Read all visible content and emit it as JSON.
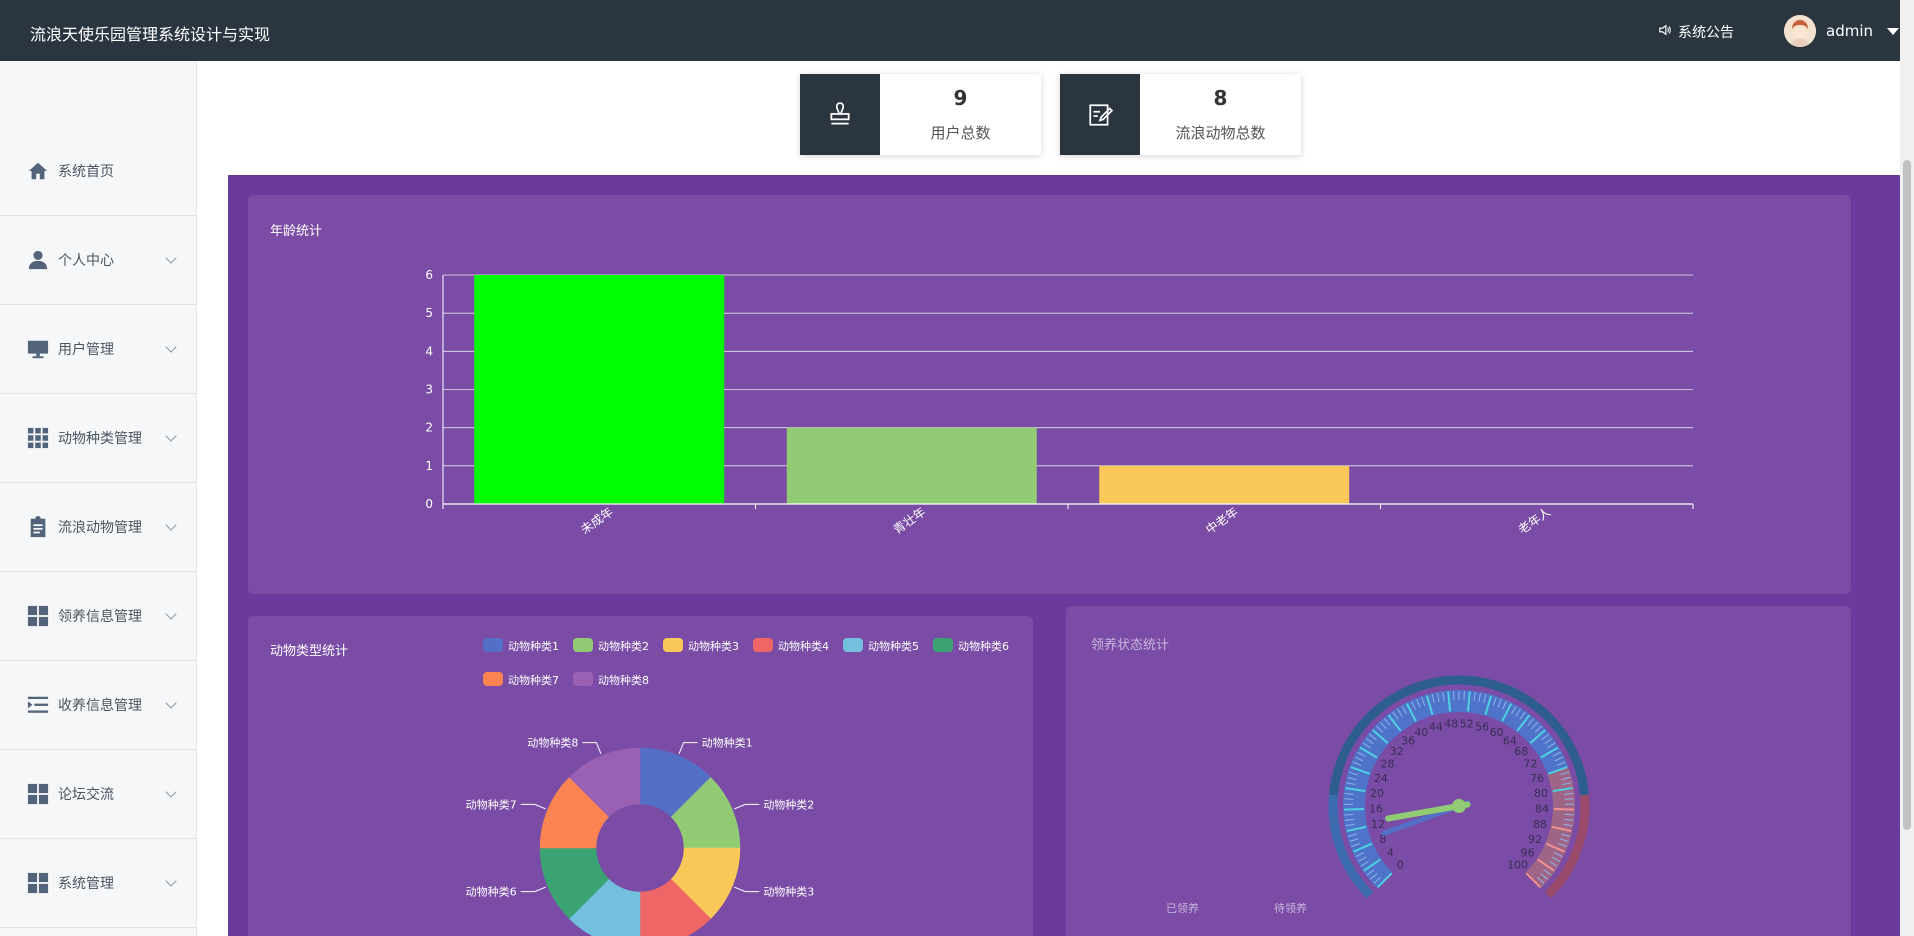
{
  "header": {
    "title": "流浪天使乐园管理系统设计与实现",
    "notice_label": "系统公告",
    "username": "admin"
  },
  "sidebar": {
    "items": [
      {
        "label": "系统首页",
        "icon": "home-icon",
        "has_submenu": false
      },
      {
        "label": "个人中心",
        "icon": "person-icon",
        "has_submenu": true
      },
      {
        "label": "用户管理",
        "icon": "monitor-icon",
        "has_submenu": true
      },
      {
        "label": "动物种类管理",
        "icon": "grid-icon",
        "has_submenu": true
      },
      {
        "label": "流浪动物管理",
        "icon": "clipboard-icon",
        "has_submenu": true
      },
      {
        "label": "领养信息管理",
        "icon": "tiles-icon",
        "has_submenu": true
      },
      {
        "label": "收养信息管理",
        "icon": "indent-icon",
        "has_submenu": true
      },
      {
        "label": "论坛交流",
        "icon": "tiles-icon",
        "has_submenu": true
      },
      {
        "label": "系统管理",
        "icon": "tiles-icon",
        "has_submenu": true
      }
    ]
  },
  "stats": [
    {
      "value": "9",
      "label": "用户总数",
      "icon": "stamp-icon"
    },
    {
      "value": "8",
      "label": "流浪动物总数",
      "icon": "edit-note-icon"
    }
  ],
  "panels": {
    "age_title": "年龄统计",
    "type_title": "动物类型统计",
    "adopt_title": "领养状态统计"
  },
  "chart_data": [
    {
      "type": "bar",
      "title": "年龄统计",
      "categories": [
        "未成年",
        "青壮年",
        "中老年",
        "老年人"
      ],
      "values": [
        6,
        2,
        1,
        0
      ],
      "colors": [
        "#00ff00",
        "#91cc75",
        "#fac858",
        "#ee6666"
      ],
      "ylim": [
        0,
        6
      ],
      "yticks": [
        0,
        1,
        2,
        3,
        4,
        5,
        6
      ],
      "grid": true
    },
    {
      "type": "pie",
      "title": "动物类型统计",
      "categories": [
        "动物种类1",
        "动物种类2",
        "动物种类3",
        "动物种类4",
        "动物种类5",
        "动物种类6",
        "动物种类7",
        "动物种类8"
      ],
      "values": [
        1,
        1,
        1,
        1,
        1,
        1,
        1,
        1
      ],
      "colors": [
        "#5470c6",
        "#91cc75",
        "#fac858",
        "#ee6666",
        "#73c0de",
        "#3ba272",
        "#fc8452",
        "#9a60b4"
      ],
      "legend_placement": "top"
    },
    {
      "type": "gauge",
      "title": "领养状态统计",
      "series": [
        {
          "name": "已领养"
        },
        {
          "name": "待领养"
        }
      ],
      "scale_min": 0,
      "scale_max": 100,
      "tick_labels": [
        "0",
        "4",
        "8",
        "12",
        "16",
        "20",
        "24",
        "28",
        "32",
        "36",
        "40",
        "44",
        "48",
        "52",
        "56",
        "60",
        "64",
        "68",
        "72",
        "76",
        "80",
        "84",
        "88",
        "92",
        "96",
        "100"
      ],
      "legend_placement": "bottom-left"
    }
  ]
}
